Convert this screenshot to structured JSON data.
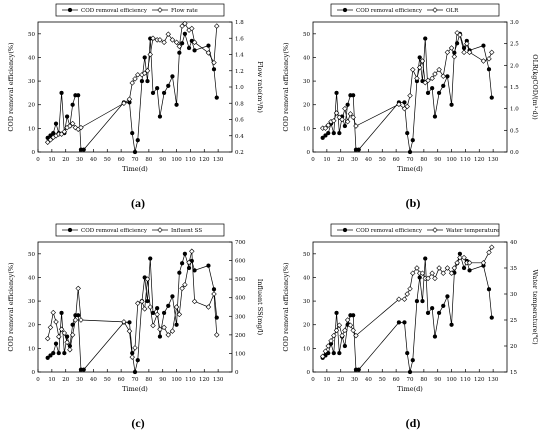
{
  "figure": {
    "panel_labels": [
      "(a)",
      "(b)",
      "(c)",
      "(d)"
    ]
  },
  "chart_data": [
    {
      "type": "line",
      "panel": "(a)",
      "xlabel": "Time(d)",
      "ylabel": "COD removal efficiency(%)",
      "y2label": "Flow rate(m³/h)",
      "xlim": [
        0,
        140
      ],
      "ylim": [
        0,
        55
      ],
      "y2lim": [
        0.2,
        1.8
      ],
      "xticks": [
        0,
        10,
        20,
        30,
        40,
        50,
        60,
        70,
        80,
        90,
        100,
        110,
        120,
        130
      ],
      "yticks": [
        0,
        10,
        20,
        30,
        40,
        50
      ],
      "y2ticks": [
        "0.2",
        "0.4",
        "0.6",
        "0.8",
        "1.0",
        "1.2",
        "1.4",
        "1.6",
        "1.8"
      ],
      "legend_position": "top",
      "series": [
        {
          "name": "COD removal efficiency",
          "marker": "filled-circle",
          "axis": "left",
          "x": [
            7,
            9,
            11,
            13,
            15,
            17,
            19,
            21,
            23,
            25,
            27,
            29,
            31,
            33,
            62,
            66,
            68,
            70,
            72,
            75,
            77,
            79,
            81,
            83,
            86,
            88,
            91,
            94,
            97,
            100,
            102,
            104,
            106,
            109,
            111,
            113,
            123,
            127,
            129
          ],
          "y": [
            6,
            7,
            8,
            12,
            8,
            25,
            8,
            15,
            11,
            20,
            24,
            24,
            1,
            1,
            21,
            21,
            8,
            0,
            5,
            30,
            40,
            30,
            48,
            25,
            27,
            15,
            25,
            28,
            32,
            20,
            42,
            46,
            50,
            44,
            47,
            43,
            45,
            35,
            23
          ]
        },
        {
          "name": "Flow rate",
          "marker": "open-diamond",
          "axis": "right",
          "x": [
            7,
            9,
            11,
            13,
            15,
            17,
            19,
            21,
            23,
            25,
            27,
            29,
            31,
            62,
            66,
            68,
            70,
            72,
            75,
            77,
            79,
            81,
            83,
            86,
            88,
            91,
            94,
            97,
            100,
            102,
            104,
            106,
            109,
            111,
            113,
            123,
            127,
            129
          ],
          "y": [
            0.32,
            0.35,
            0.38,
            0.4,
            0.42,
            0.42,
            0.45,
            0.5,
            0.52,
            0.55,
            0.5,
            0.48,
            0.5,
            0.8,
            0.85,
            1.05,
            1.1,
            1.15,
            1.15,
            1.17,
            1.2,
            1.4,
            1.6,
            1.58,
            1.58,
            1.55,
            1.65,
            1.58,
            1.55,
            1.5,
            1.75,
            1.78,
            1.7,
            1.72,
            1.55,
            1.42,
            1.3,
            1.75
          ]
        }
      ]
    },
    {
      "type": "line",
      "panel": "(b)",
      "xlabel": "Time(d)",
      "ylabel": "COD removal efficiency(%)",
      "y2label": "OLR(kgCOD/(m³·d))",
      "xlim": [
        0,
        140
      ],
      "ylim": [
        0,
        55
      ],
      "y2lim": [
        0,
        3.0
      ],
      "xticks": [
        0,
        10,
        20,
        30,
        40,
        50,
        60,
        70,
        80,
        90,
        100,
        110,
        120,
        130
      ],
      "yticks": [
        0,
        10,
        20,
        30,
        40,
        50
      ],
      "y2ticks": [
        "0.0",
        "0.5",
        "1.0",
        "1.5",
        "2.0",
        "2.5",
        "3.0"
      ],
      "legend_position": "top",
      "series": [
        {
          "name": "COD removal efficiency",
          "marker": "filled-circle",
          "axis": "left",
          "x": [
            7,
            9,
            11,
            13,
            15,
            17,
            19,
            21,
            23,
            25,
            27,
            29,
            31,
            33,
            62,
            66,
            68,
            70,
            72,
            75,
            77,
            79,
            81,
            83,
            86,
            88,
            91,
            94,
            97,
            100,
            102,
            104,
            106,
            109,
            111,
            113,
            123,
            127,
            129
          ],
          "y": [
            6,
            7,
            8,
            12,
            8,
            25,
            8,
            15,
            11,
            20,
            24,
            24,
            1,
            1,
            21,
            21,
            8,
            0,
            5,
            30,
            40,
            30,
            48,
            25,
            27,
            15,
            25,
            28,
            32,
            20,
            42,
            46,
            50,
            44,
            47,
            43,
            45,
            35,
            23
          ]
        },
        {
          "name": "OLR",
          "marker": "open-diamond",
          "axis": "right",
          "x": [
            7,
            9,
            11,
            13,
            15,
            17,
            19,
            21,
            23,
            25,
            27,
            29,
            31,
            62,
            66,
            68,
            70,
            72,
            75,
            77,
            79,
            81,
            83,
            86,
            88,
            91,
            94,
            97,
            100,
            102,
            104,
            106,
            109,
            111,
            113,
            123,
            127,
            129
          ],
          "y": [
            0.55,
            0.55,
            0.62,
            0.7,
            0.72,
            0.9,
            0.8,
            0.75,
            1.0,
            0.7,
            0.88,
            0.8,
            0.6,
            1.1,
            1.0,
            1.05,
            1.3,
            1.9,
            1.7,
            1.95,
            2.1,
            1.6,
            1.65,
            1.7,
            1.8,
            1.9,
            1.75,
            2.3,
            2.4,
            2.2,
            2.75,
            2.7,
            2.3,
            2.5,
            2.3,
            2.1,
            2.15,
            2.3
          ]
        }
      ]
    },
    {
      "type": "line",
      "panel": "(c)",
      "xlabel": "Time(d)",
      "ylabel": "COD removal efficiency(%)",
      "y2label": "Influent SS(mg/l)",
      "xlim": [
        0,
        140
      ],
      "ylim": [
        0,
        55
      ],
      "y2lim": [
        0,
        700
      ],
      "xticks": [
        0,
        10,
        20,
        30,
        40,
        50,
        60,
        70,
        80,
        90,
        100,
        110,
        120,
        130
      ],
      "yticks": [
        0,
        10,
        20,
        30,
        40,
        50
      ],
      "y2ticks": [
        "0",
        "100",
        "200",
        "300",
        "400",
        "500",
        "600",
        "700"
      ],
      "legend_position": "top",
      "series": [
        {
          "name": "COD removal efficiency",
          "marker": "filled-circle",
          "axis": "left",
          "x": [
            7,
            9,
            11,
            13,
            15,
            17,
            19,
            21,
            23,
            25,
            27,
            29,
            31,
            33,
            62,
            66,
            68,
            70,
            72,
            75,
            77,
            79,
            81,
            83,
            86,
            88,
            91,
            94,
            97,
            100,
            102,
            104,
            106,
            109,
            111,
            113,
            123,
            127,
            129
          ],
          "y": [
            6,
            7,
            8,
            12,
            8,
            25,
            8,
            15,
            11,
            20,
            24,
            24,
            1,
            1,
            21,
            21,
            8,
            0,
            5,
            30,
            40,
            30,
            48,
            25,
            27,
            15,
            25,
            28,
            32,
            20,
            42,
            46,
            50,
            44,
            47,
            43,
            45,
            35,
            23
          ]
        },
        {
          "name": "Influent SS",
          "marker": "open-diamond",
          "axis": "right",
          "x": [
            7,
            9,
            11,
            13,
            15,
            17,
            19,
            21,
            23,
            25,
            27,
            29,
            31,
            62,
            66,
            68,
            70,
            72,
            75,
            77,
            79,
            81,
            83,
            86,
            88,
            91,
            94,
            97,
            100,
            102,
            104,
            106,
            109,
            111,
            113,
            123,
            127,
            129
          ],
          "y": [
            180,
            240,
            320,
            270,
            190,
            230,
            210,
            160,
            120,
            200,
            280,
            450,
            280,
            270,
            220,
            80,
            130,
            370,
            380,
            340,
            500,
            350,
            250,
            310,
            230,
            240,
            200,
            220,
            350,
            310,
            450,
            470,
            590,
            650,
            380,
            350,
            420,
            200
          ]
        }
      ]
    },
    {
      "type": "line",
      "panel": "(d)",
      "xlabel": "Time(d)",
      "ylabel": "COD removal efficiency(%)",
      "y2label": "Water temperature(℃)",
      "xlim": [
        0,
        140
      ],
      "ylim": [
        0,
        55
      ],
      "y2lim": [
        15,
        40
      ],
      "xticks": [
        0,
        10,
        20,
        30,
        40,
        50,
        60,
        70,
        80,
        90,
        100,
        110,
        120,
        130
      ],
      "yticks": [
        0,
        10,
        20,
        30,
        40,
        50
      ],
      "y2ticks": [
        "15",
        "20",
        "25",
        "30",
        "35",
        "40"
      ],
      "legend_position": "top",
      "series": [
        {
          "name": "COD removal efficiency",
          "marker": "filled-circle",
          "axis": "left",
          "x": [
            7,
            9,
            11,
            13,
            15,
            17,
            19,
            21,
            23,
            25,
            27,
            29,
            31,
            33,
            62,
            66,
            68,
            70,
            72,
            75,
            77,
            79,
            81,
            83,
            86,
            88,
            91,
            94,
            97,
            100,
            102,
            104,
            106,
            109,
            111,
            113,
            123,
            127,
            129
          ],
          "y": [
            6,
            7,
            8,
            12,
            8,
            25,
            8,
            15,
            11,
            20,
            24,
            24,
            1,
            1,
            21,
            21,
            8,
            0,
            5,
            30,
            40,
            30,
            48,
            25,
            27,
            15,
            25,
            28,
            32,
            20,
            42,
            46,
            50,
            44,
            47,
            43,
            45,
            35,
            23
          ]
        },
        {
          "name": "Water temperature",
          "marker": "open-diamond",
          "axis": "right",
          "x": [
            7,
            9,
            11,
            13,
            15,
            17,
            19,
            21,
            23,
            25,
            27,
            29,
            31,
            62,
            66,
            68,
            70,
            72,
            75,
            77,
            79,
            81,
            83,
            86,
            88,
            91,
            94,
            97,
            100,
            102,
            104,
            106,
            109,
            111,
            113,
            123,
            127,
            129
          ],
          "y": [
            18,
            19,
            20,
            21,
            22,
            23,
            24,
            22,
            23,
            25,
            24,
            23,
            22,
            29,
            29,
            30,
            31,
            34,
            35,
            34,
            34,
            33,
            33,
            34,
            33,
            35,
            34,
            35,
            34,
            35,
            36,
            37,
            37,
            36,
            36,
            36,
            38,
            39
          ]
        }
      ]
    }
  ]
}
